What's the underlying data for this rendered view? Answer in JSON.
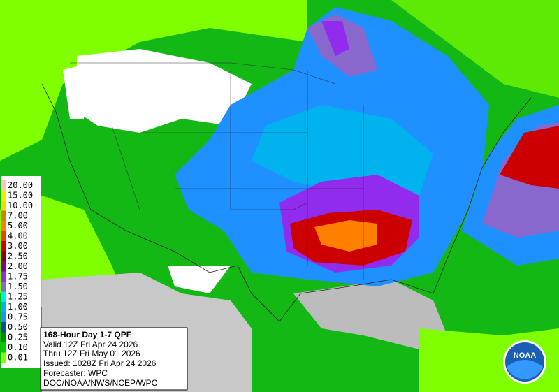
{
  "legend": {
    "entries": [
      {
        "label": "20.00",
        "color": "#ffc1c1"
      },
      {
        "label": "15.00",
        "color": "#eeee00"
      },
      {
        "label": "10.00",
        "color": "#ffd700"
      },
      {
        "label": "7.00",
        "color": "#cd8500"
      },
      {
        "label": "5.00",
        "color": "#ff7f00"
      },
      {
        "label": "4.00",
        "color": "#ee4000"
      },
      {
        "label": "3.00",
        "color": "#cd0000"
      },
      {
        "label": "2.50",
        "color": "#8b0000"
      },
      {
        "label": "2.00",
        "color": "#8b008b"
      },
      {
        "label": "1.75",
        "color": "#912cee"
      },
      {
        "label": "1.50",
        "color": "#8968cd"
      },
      {
        "label": "1.25",
        "color": "#00eeee"
      },
      {
        "label": "1.00",
        "color": "#00b2ee"
      },
      {
        "label": "0.75",
        "color": "#1e90ff"
      },
      {
        "label": "0.50",
        "color": "#104e8b"
      },
      {
        "label": "0.25",
        "color": "#008b00"
      },
      {
        "label": "0.10",
        "color": "#00cd00"
      },
      {
        "label": "0.01",
        "color": "#7fff00"
      }
    ]
  },
  "info": {
    "title": "168-Hour Day 1-7 QPF",
    "lines": [
      "Valid 12Z Fri Apr 24 2026",
      "Thru 12Z Fri May 01 2026",
      "Issued: 1028Z Fri Apr 24 2026",
      "Forecaster: WPC",
      "DOC/NOAA/NWS/NCEP/WPC"
    ]
  },
  "logo": {
    "text": "NOAA"
  }
}
